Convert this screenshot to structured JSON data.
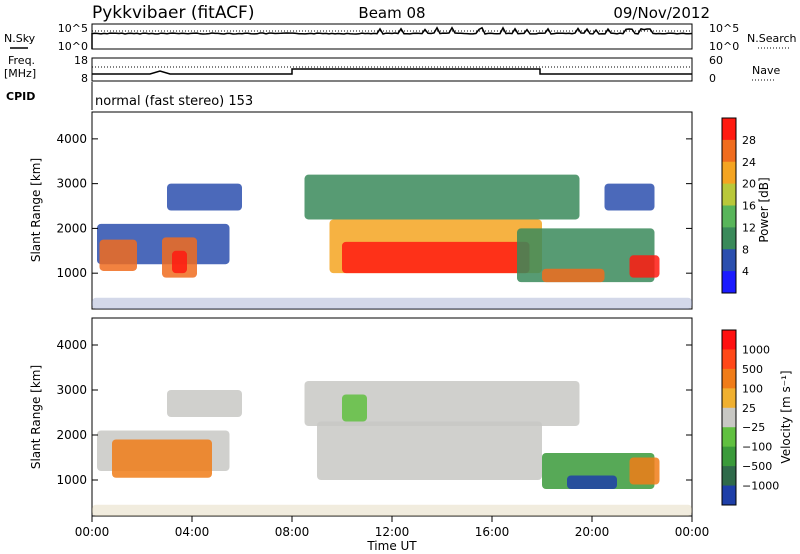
{
  "header": {
    "station": "Pykkvibaer (fitACF)",
    "beam": "Beam 08",
    "date": "09/Nov/2012"
  },
  "side_labels": {
    "nsky": "N.Sky",
    "nsearch": "N.Search",
    "freq_line1": "Freq.",
    "freq_line2": "[MHz]",
    "nave": "Nave",
    "cpid": "CPID"
  },
  "cpid_text": "normal (fast stereo) 153",
  "chart_data": [
    {
      "type": "line",
      "panel": "noise",
      "yticks_left": [
        "10^5",
        "10^0"
      ],
      "yticks_right": [
        "10^5",
        "10^0"
      ],
      "series": [
        {
          "name": "N.Sky",
          "style": "solid",
          "description_values_level": "near 10^5"
        },
        {
          "name": "N.Search",
          "style": "dotted"
        }
      ]
    },
    {
      "type": "line",
      "panel": "frequency_nave",
      "yticks_left": [
        "18",
        "8"
      ],
      "yticks_right": [
        "60",
        "0"
      ],
      "series": [
        {
          "name": "Freq.",
          "x": [
            "00:00",
            "08:00",
            "08:00",
            "18:00",
            "18:00",
            "24:00"
          ],
          "y": [
            10.5,
            10.5,
            13.5,
            13.5,
            10.5,
            10.5
          ]
        },
        {
          "name": "Nave",
          "style": "dotted",
          "y_approx": 40
        }
      ]
    },
    {
      "type": "heatmap",
      "panel": "power",
      "ylabel": "Slant Range [km]",
      "yticks": [
        "1000",
        "2000",
        "3000",
        "4000"
      ],
      "ylim": [
        200,
        4600
      ],
      "colorbar": {
        "label": "Power [dB]",
        "ticks": [
          "4",
          "8",
          "12",
          "16",
          "20",
          "24",
          "28"
        ],
        "colors": [
          "#1b1bff",
          "#2b4fae",
          "#3a8a5a",
          "#58b55a",
          "#b9c83a",
          "#f4a421",
          "#f06c1e",
          "#ff1a10"
        ]
      }
    },
    {
      "type": "heatmap",
      "panel": "velocity",
      "ylabel": "Slant Range [km]",
      "yticks": [
        "1000",
        "2000",
        "3000",
        "4000"
      ],
      "ylim": [
        200,
        4600
      ],
      "colorbar": {
        "label": "Velocity [m s⁻¹]",
        "ticks": [
          "1000",
          "500",
          "100",
          "25",
          "−25",
          "−100",
          "−500",
          "−1000"
        ],
        "colors": [
          "#1e3fa8",
          "#2f6a4a",
          "#3a9a3a",
          "#60c040",
          "#c8c8c4",
          "#f0b030",
          "#f07c18",
          "#ff4818",
          "#ff1010"
        ]
      }
    }
  ],
  "xaxis": {
    "label": "Time UT",
    "ticks": [
      "00:00",
      "04:00",
      "08:00",
      "12:00",
      "16:00",
      "20:00",
      "00:00"
    ]
  }
}
